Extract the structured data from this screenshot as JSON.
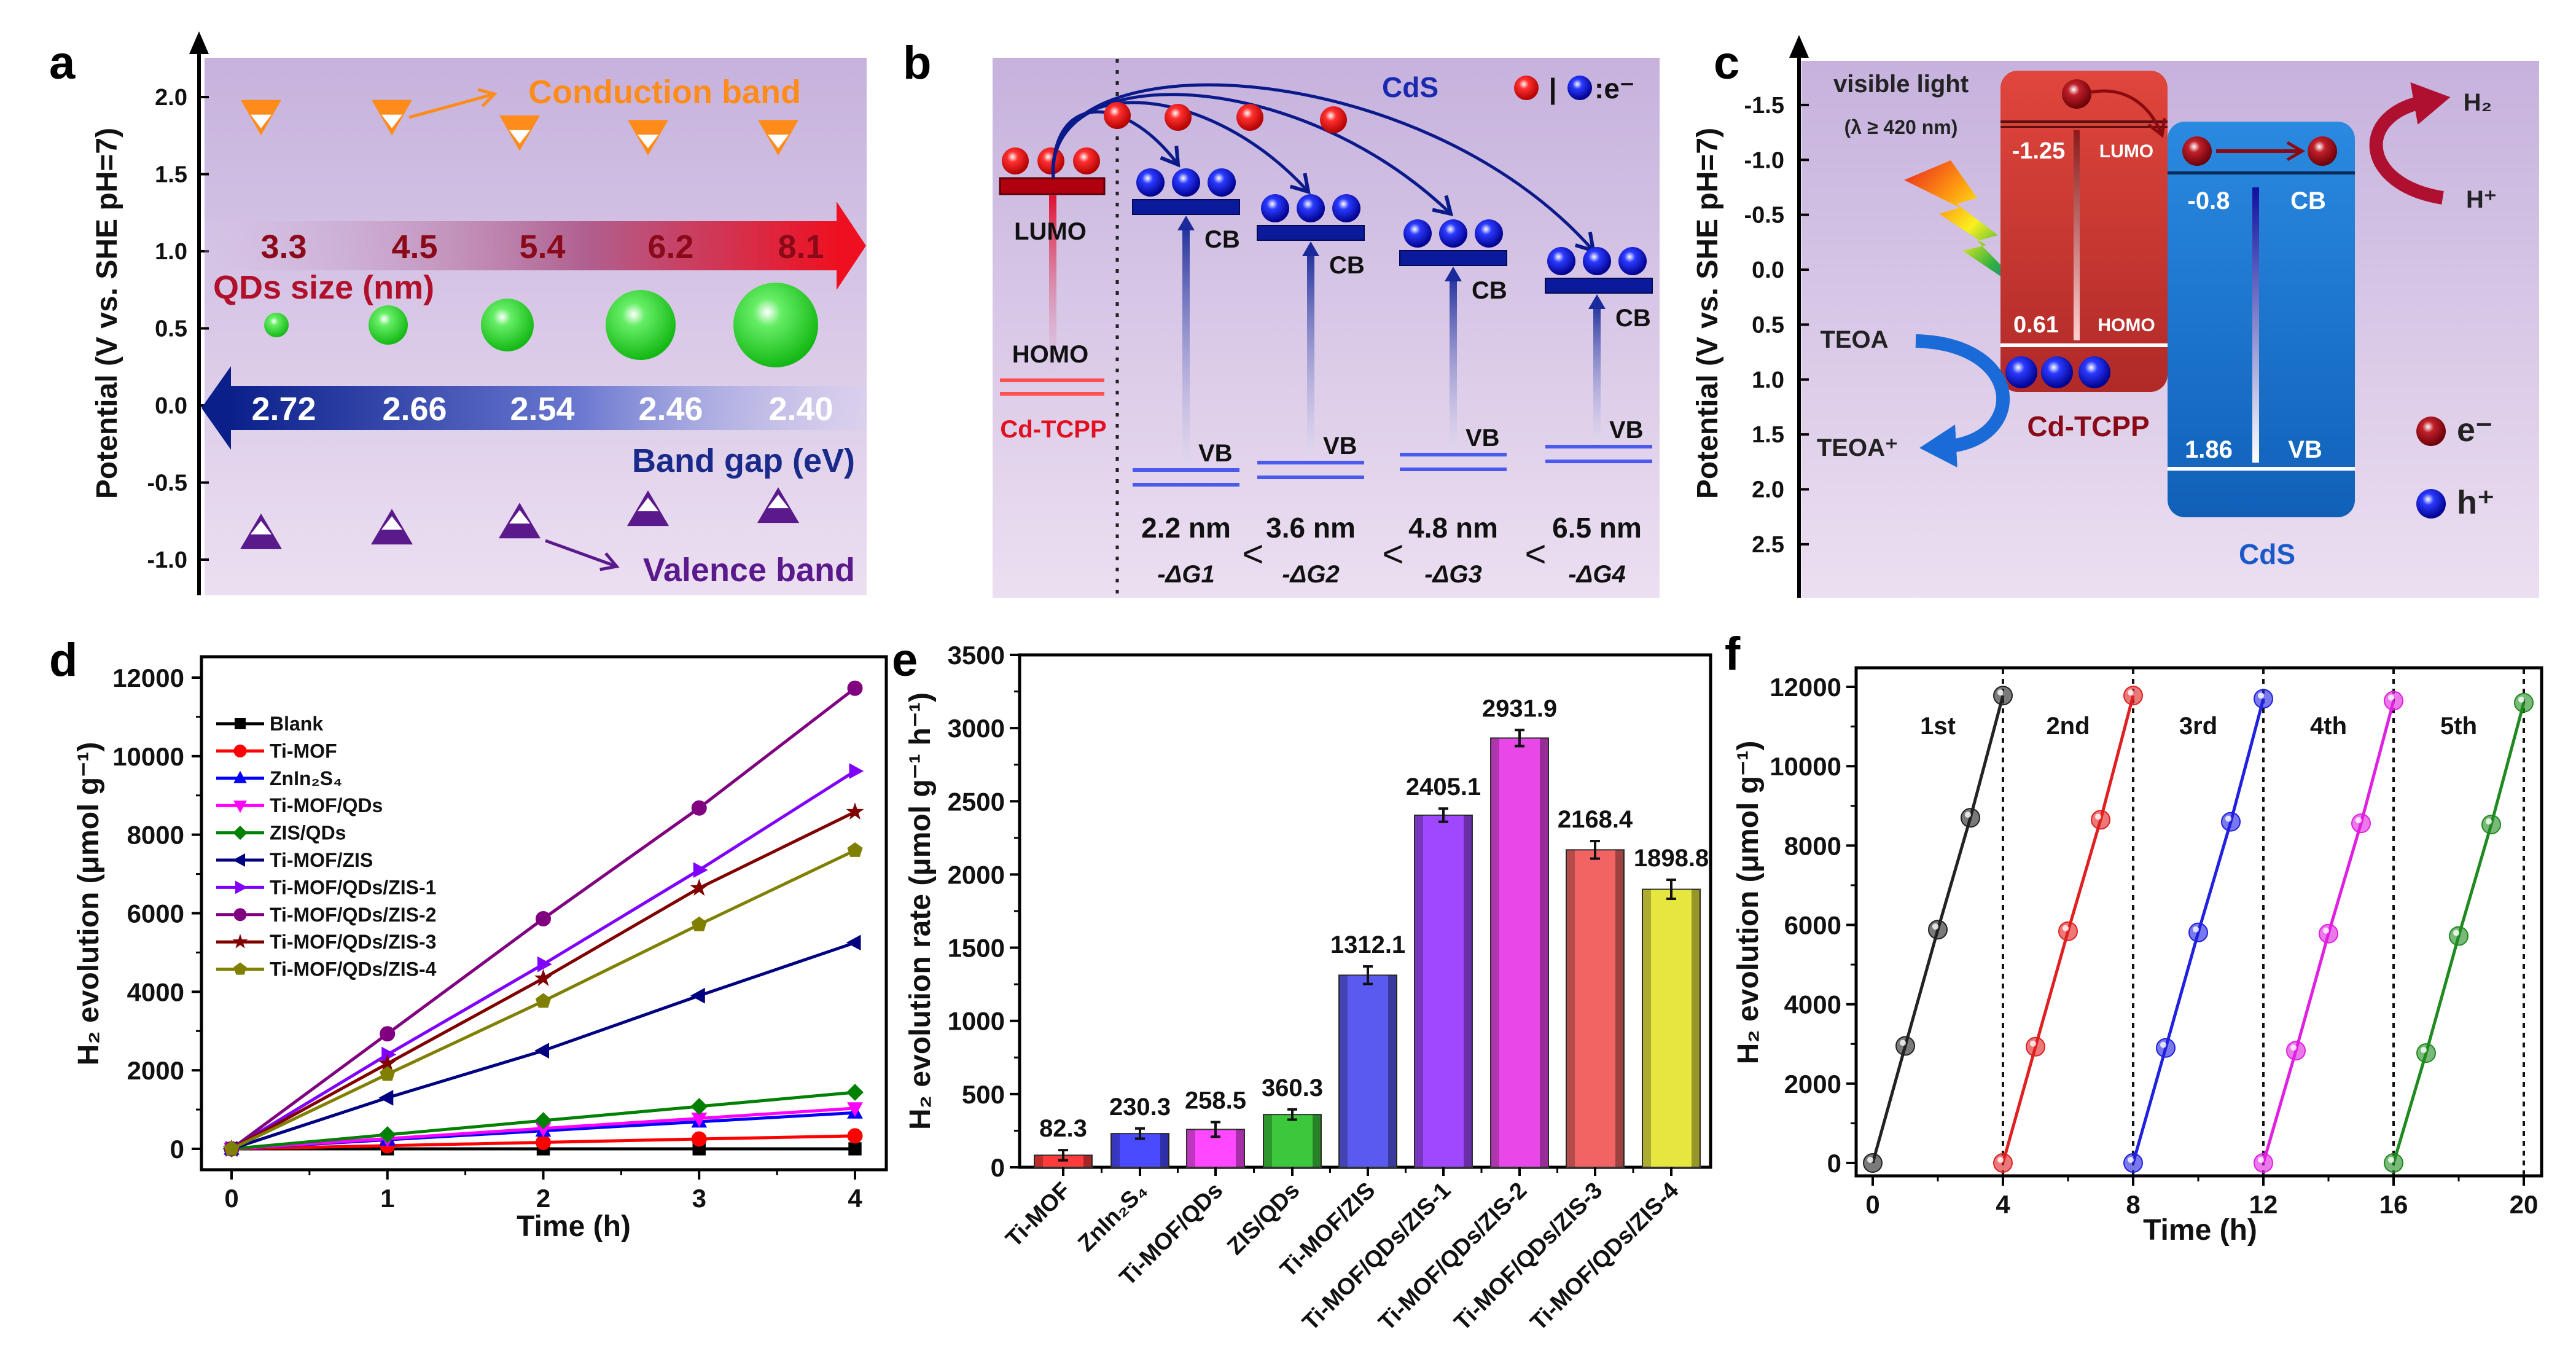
{
  "figure": {
    "panel_a": {
      "label": "a",
      "y_axis_label": "Potential (V vs. SHE pH=7)",
      "y_ticks": [
        "2.0",
        "1.5",
        "1.0",
        "0.5",
        "0.0",
        "-0.5",
        "-1.0"
      ],
      "conduction_band_label": "Conduction band",
      "valence_band_label": "Valence band",
      "qd_size_label": "QDs size (nm)",
      "band_gap_label": "Band gap (eV)",
      "qd_sizes_nm": [
        "3.3",
        "4.5",
        "5.4",
        "6.2",
        "8.1"
      ],
      "band_gaps_ev": [
        "2.72",
        "2.66",
        "2.54",
        "2.46",
        "2.40"
      ],
      "cb_positions_v": [
        1.87,
        1.87,
        1.77,
        1.74,
        1.74
      ],
      "vb_positions_v": [
        -0.82,
        -0.79,
        -0.75,
        -0.67,
        -0.65
      ],
      "colors": {
        "conduction": "#ff8c1a",
        "valence": "#5a1a8c",
        "qd": "#22cc22",
        "size_arrow": "#e8102a",
        "gap_arrow": "#0a1f8a"
      }
    },
    "panel_b": {
      "label": "b",
      "cds_label": "CdS",
      "legend_separator": "|",
      "legend_text": ":e⁻",
      "lumo_label": "LUMO",
      "homo_label": "HOMO",
      "cd_tcpp_label": "Cd-TCPP",
      "cb_label": "CB",
      "vb_label": "VB",
      "sizes": [
        "2.2 nm",
        "3.6 nm",
        "4.8 nm",
        "6.5 nm"
      ],
      "delta_g": [
        "-ΔG1",
        "-ΔG2",
        "-ΔG3",
        "-ΔG4"
      ],
      "comparator": "<"
    },
    "panel_c": {
      "label": "c",
      "y_axis_label": "Potential (V vs. SHE pH=7)",
      "y_ticks": [
        "-1.5",
        "-1.0",
        "-0.5",
        "0.0",
        "0.5",
        "1.0",
        "1.5",
        "2.0",
        "2.5"
      ],
      "light_label": "visible light",
      "wavelength_label": "(λ ≥ 420 nm)",
      "lumo_value": "-1.25",
      "lumo_label": "LUMO",
      "homo_value": "0.61",
      "homo_label": "HOMO",
      "cd_tcpp_label": "Cd-TCPP",
      "cb_value": "-0.8",
      "cb_label": "CB",
      "vb_value": "1.86",
      "vb_label": "VB",
      "cds_label": "CdS",
      "teoa": "TEOA",
      "teoa_plus": "TEOA⁺",
      "h2": "H₂",
      "h_plus": "H⁺",
      "legend_electron": "e⁻",
      "legend_hole": "h⁺"
    }
  },
  "chart_data": [
    {
      "panel": "d",
      "type": "line",
      "xlabel": "Time (h)",
      "ylabel": "H₂ evolution (μmol g⁻¹)",
      "xlim": [
        0,
        4
      ],
      "ylim": [
        0,
        12000
      ],
      "x_ticks": [
        "0",
        "1",
        "2",
        "3",
        "4"
      ],
      "y_ticks": [
        "0",
        "2000",
        "4000",
        "6000",
        "8000",
        "10000",
        "12000"
      ],
      "legend_position": "top-left",
      "x": [
        0,
        1,
        2,
        3,
        4
      ],
      "series": [
        {
          "name": "Blank",
          "color": "#000000",
          "marker": "square",
          "values": [
            0,
            0,
            0,
            0,
            0
          ]
        },
        {
          "name": "Ti-MOF",
          "color": "#ff0000",
          "marker": "circle",
          "values": [
            0,
            80,
            165,
            250,
            330
          ]
        },
        {
          "name": "ZnIn₂S₄",
          "color": "#0000ff",
          "marker": "triangle-up",
          "values": [
            0,
            230,
            460,
            690,
            920
          ]
        },
        {
          "name": "Ti-MOF/QDs",
          "color": "#ff00ff",
          "marker": "triangle-down",
          "values": [
            0,
            260,
            520,
            775,
            1035
          ]
        },
        {
          "name": "ZIS/QDs",
          "color": "#008000",
          "marker": "diamond",
          "values": [
            0,
            360,
            720,
            1080,
            1440
          ]
        },
        {
          "name": "Ti-MOF/ZIS",
          "color": "#000080",
          "marker": "triangle-left",
          "values": [
            0,
            1300,
            2500,
            3900,
            5250
          ]
        },
        {
          "name": "Ti-MOF/QDs/ZIS-1",
          "color": "#8000ff",
          "marker": "triangle-right",
          "values": [
            0,
            2400,
            4700,
            7100,
            9620
          ]
        },
        {
          "name": "Ti-MOF/QDs/ZIS-2",
          "color": "#800080",
          "marker": "hexagon",
          "values": [
            0,
            2930,
            5860,
            8680,
            11730
          ]
        },
        {
          "name": "Ti-MOF/QDs/ZIS-3",
          "color": "#800000",
          "marker": "star",
          "values": [
            0,
            2170,
            4340,
            6640,
            8580
          ]
        },
        {
          "name": "Ti-MOF/QDs/ZIS-4",
          "color": "#808000",
          "marker": "pentagon",
          "values": [
            0,
            1900,
            3760,
            5710,
            7600
          ]
        }
      ]
    },
    {
      "panel": "e",
      "type": "bar",
      "xlabel": "",
      "ylabel": "H₂ evolution rate (μmol g⁻¹ h⁻¹)",
      "ylim": [
        0,
        3500
      ],
      "y_ticks": [
        "0",
        "500",
        "1000",
        "1500",
        "2000",
        "2500",
        "3000",
        "3500"
      ],
      "categories": [
        "Ti-MOF",
        "ZnIn₂S₄",
        "Ti-MOF/QDs",
        "ZIS/QDs",
        "Ti-MOF/ZIS",
        "Ti-MOF/QDs/ZIS-1",
        "Ti-MOF/QDs/ZIS-2",
        "Ti-MOF/QDs/ZIS-3",
        "Ti-MOF/QDs/ZIS-4"
      ],
      "values": [
        82.3,
        230.3,
        258.5,
        360.3,
        1312.1,
        2405.1,
        2931.9,
        2168.4,
        1898.8
      ],
      "value_labels": [
        "82.3",
        "230.3",
        "258.5",
        "360.3",
        "1312.1",
        "2405.1",
        "2931.9",
        "2168.4",
        "1898.8"
      ],
      "errors": [
        35,
        35,
        50,
        35,
        60,
        45,
        55,
        60,
        65
      ],
      "colors": [
        "#ff3b3b",
        "#4a4aff",
        "#ff48ff",
        "#3cc83c",
        "#5a5af0",
        "#a048ff",
        "#e848e8",
        "#f26464",
        "#e6e640"
      ]
    },
    {
      "panel": "f",
      "type": "line",
      "xlabel": "Time (h)",
      "ylabel": "H₂ evolution (μmol g⁻¹)",
      "xlim": [
        0,
        20
      ],
      "ylim": [
        0,
        12000
      ],
      "x_ticks": [
        "0",
        "4",
        "8",
        "12",
        "16",
        "20"
      ],
      "y_ticks": [
        "0",
        "2000",
        "4000",
        "6000",
        "8000",
        "10000",
        "12000"
      ],
      "cycle_separators": [
        4,
        8,
        12,
        16,
        20
      ],
      "series": [
        {
          "name": "1st",
          "color": "#222222",
          "x": [
            0,
            1,
            2,
            3,
            4
          ],
          "values": [
            0,
            2950,
            5880,
            8700,
            11780
          ]
        },
        {
          "name": "2nd",
          "color": "#e02020",
          "x": [
            4,
            5,
            6,
            7,
            8
          ],
          "values": [
            0,
            2930,
            5840,
            8650,
            11780
          ]
        },
        {
          "name": "3rd",
          "color": "#2020e0",
          "x": [
            8,
            9,
            10,
            11,
            12
          ],
          "values": [
            0,
            2900,
            5810,
            8600,
            11700
          ]
        },
        {
          "name": "4th",
          "color": "#e020e0",
          "x": [
            12,
            13,
            14,
            15,
            16
          ],
          "values": [
            0,
            2830,
            5780,
            8560,
            11650
          ]
        },
        {
          "name": "5th",
          "color": "#1f8a1f",
          "x": [
            16,
            17,
            18,
            19,
            20
          ],
          "values": [
            0,
            2770,
            5720,
            8530,
            11600
          ]
        }
      ]
    }
  ]
}
